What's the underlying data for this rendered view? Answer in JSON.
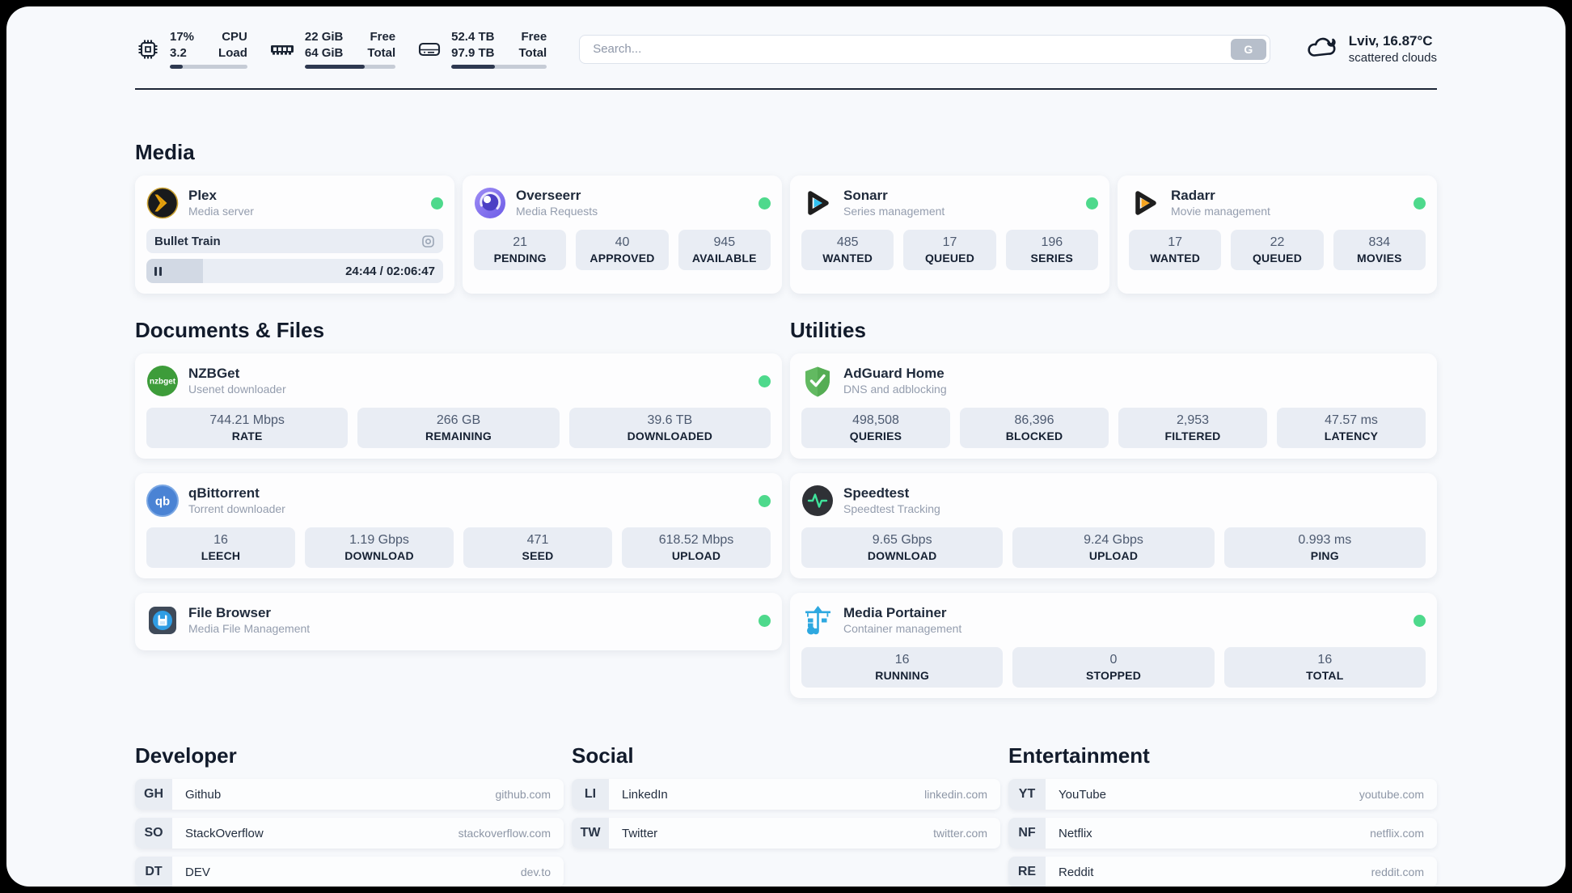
{
  "header": {
    "stats": [
      {
        "icon": "cpu-icon",
        "values": [
          "17%",
          "3.2"
        ],
        "labels": [
          "CPU",
          "Load"
        ],
        "progress": 17
      },
      {
        "icon": "memory-icon",
        "values": [
          "22 GiB",
          "64 GiB"
        ],
        "labels": [
          "Free",
          "Total"
        ],
        "progress": 66
      },
      {
        "icon": "disk-icon",
        "values": [
          "52.4 TB",
          "97.9 TB"
        ],
        "labels": [
          "Free",
          "Total"
        ],
        "progress": 46
      }
    ],
    "search": {
      "placeholder": "Search...",
      "button": "G"
    },
    "weather": {
      "icon": "cloud-icon",
      "location": "Lviv, 16.87°C",
      "condition": "scattered clouds"
    }
  },
  "sections": {
    "media": {
      "title": "Media"
    },
    "documents": {
      "title": "Documents & Files"
    },
    "utilities": {
      "title": "Utilities"
    }
  },
  "apps": {
    "plex": {
      "name": "Plex",
      "desc": "Media server",
      "now_playing": "Bullet Train",
      "time": "24:44 / 02:06:47",
      "progress": 19
    },
    "overseerr": {
      "name": "Overseerr",
      "desc": "Media Requests",
      "stats": [
        {
          "value": "21",
          "label": "PENDING"
        },
        {
          "value": "40",
          "label": "APPROVED"
        },
        {
          "value": "945",
          "label": "AVAILABLE"
        }
      ]
    },
    "sonarr": {
      "name": "Sonarr",
      "desc": "Series management",
      "stats": [
        {
          "value": "485",
          "label": "WANTED"
        },
        {
          "value": "17",
          "label": "QUEUED"
        },
        {
          "value": "196",
          "label": "SERIES"
        }
      ]
    },
    "radarr": {
      "name": "Radarr",
      "desc": "Movie management",
      "stats": [
        {
          "value": "17",
          "label": "WANTED"
        },
        {
          "value": "22",
          "label": "QUEUED"
        },
        {
          "value": "834",
          "label": "MOVIES"
        }
      ]
    },
    "nzbget": {
      "name": "NZBGet",
      "desc": "Usenet downloader",
      "icon_text": "nzbget",
      "stats": [
        {
          "value": "744.21 Mbps",
          "label": "RATE"
        },
        {
          "value": "266 GB",
          "label": "REMAINING"
        },
        {
          "value": "39.6 TB",
          "label": "DOWNLOADED"
        }
      ]
    },
    "qbittorrent": {
      "name": "qBittorrent",
      "desc": "Torrent downloader",
      "icon_text": "qb",
      "stats": [
        {
          "value": "16",
          "label": "LEECH"
        },
        {
          "value": "1.19 Gbps",
          "label": "DOWNLOAD"
        },
        {
          "value": "471",
          "label": "SEED"
        },
        {
          "value": "618.52 Mbps",
          "label": "UPLOAD"
        }
      ]
    },
    "filebrowser": {
      "name": "File Browser",
      "desc": "Media File Management"
    },
    "adguard": {
      "name": "AdGuard Home",
      "desc": "DNS and adblocking",
      "stats": [
        {
          "value": "498,508",
          "label": "QUERIES"
        },
        {
          "value": "86,396",
          "label": "BLOCKED"
        },
        {
          "value": "2,953",
          "label": "FILTERED"
        },
        {
          "value": "47.57 ms",
          "label": "LATENCY"
        }
      ]
    },
    "speedtest": {
      "name": "Speedtest",
      "desc": "Speedtest Tracking",
      "stats": [
        {
          "value": "9.65 Gbps",
          "label": "DOWNLOAD"
        },
        {
          "value": "9.24 Gbps",
          "label": "UPLOAD"
        },
        {
          "value": "0.993 ms",
          "label": "PING"
        }
      ]
    },
    "portainer": {
      "name": "Media Portainer",
      "desc": "Container management",
      "stats": [
        {
          "value": "16",
          "label": "RUNNING"
        },
        {
          "value": "0",
          "label": "STOPPED"
        },
        {
          "value": "16",
          "label": "TOTAL"
        }
      ]
    }
  },
  "links": {
    "developer": {
      "title": "Developer",
      "items": [
        {
          "abbr": "GH",
          "name": "Github",
          "url": "github.com"
        },
        {
          "abbr": "SO",
          "name": "StackOverflow",
          "url": "stackoverflow.com"
        },
        {
          "abbr": "DT",
          "name": "DEV",
          "url": "dev.to"
        }
      ]
    },
    "social": {
      "title": "Social",
      "items": [
        {
          "abbr": "LI",
          "name": "LinkedIn",
          "url": "linkedin.com"
        },
        {
          "abbr": "TW",
          "name": "Twitter",
          "url": "twitter.com"
        }
      ]
    },
    "entertainment": {
      "title": "Entertainment",
      "items": [
        {
          "abbr": "YT",
          "name": "YouTube",
          "url": "youtube.com"
        },
        {
          "abbr": "NF",
          "name": "Netflix",
          "url": "netflix.com"
        },
        {
          "abbr": "RE",
          "name": "Reddit",
          "url": "reddit.com"
        }
      ]
    }
  },
  "colors": {
    "status_online": "#4ed98c",
    "plex": "#e5a00d",
    "overseerr": "#7b6cf0",
    "sonarr": "#31c2f2",
    "radarr": "#f6a41f",
    "nzbget": "#3d9c3a",
    "qbittorrent": "#4a83d4",
    "adguard": "#62b961",
    "speedtest_pulse": "#3fe39b",
    "portainer": "#2ea8e0",
    "header_bar_fill": "#2e3950"
  }
}
